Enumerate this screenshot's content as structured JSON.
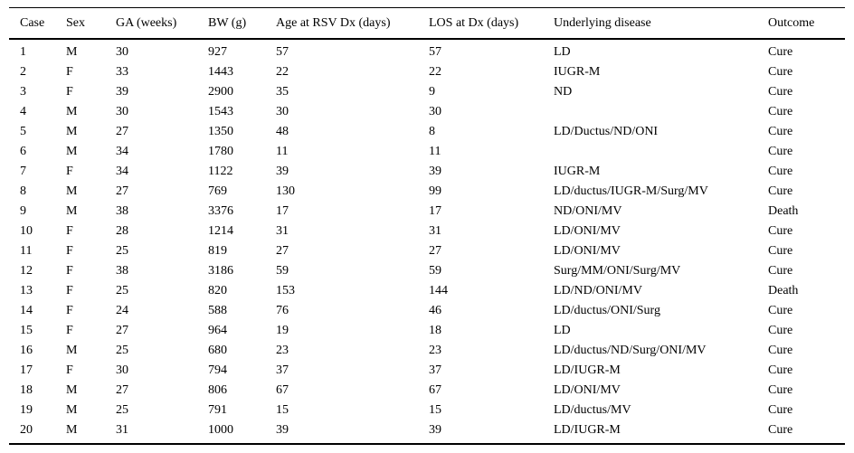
{
  "table": {
    "columns": [
      "Case",
      "Sex",
      "GA (weeks)",
      "BW (g)",
      "Age at RSV Dx (days)",
      "LOS at Dx (days)",
      "Underlying disease",
      "Outcome"
    ],
    "rows": [
      [
        "1",
        "M",
        "30",
        "927",
        "57",
        "57",
        "LD",
        "Cure"
      ],
      [
        "2",
        "F",
        "33",
        "1443",
        "22",
        "22",
        "IUGR-M",
        "Cure"
      ],
      [
        "3",
        "F",
        "39",
        "2900",
        "35",
        "9",
        "ND",
        "Cure"
      ],
      [
        "4",
        "M",
        "30",
        "1543",
        "30",
        "30",
        "",
        "Cure"
      ],
      [
        "5",
        "M",
        "27",
        "1350",
        "48",
        "8",
        "LD/Ductus/ND/ONI",
        "Cure"
      ],
      [
        "6",
        "M",
        "34",
        "1780",
        "11",
        "11",
        "",
        "Cure"
      ],
      [
        "7",
        "F",
        "34",
        "1122",
        "39",
        "39",
        "IUGR-M",
        "Cure"
      ],
      [
        "8",
        "M",
        "27",
        "769",
        "130",
        "99",
        "LD/ductus/IUGR-M/Surg/MV",
        "Cure"
      ],
      [
        "9",
        "M",
        "38",
        "3376",
        "17",
        "17",
        "ND/ONI/MV",
        "Death"
      ],
      [
        "10",
        "F",
        "28",
        "1214",
        "31",
        "31",
        "LD/ONI/MV",
        "Cure"
      ],
      [
        "11",
        "F",
        "25",
        "819",
        "27",
        "27",
        "LD/ONI/MV",
        "Cure"
      ],
      [
        "12",
        "F",
        "38",
        "3186",
        "59",
        "59",
        "Surg/MM/ONI/Surg/MV",
        "Cure"
      ],
      [
        "13",
        "F",
        "25",
        "820",
        "153",
        "144",
        "LD/ND/ONI/MV",
        "Death"
      ],
      [
        "14",
        "F",
        "24",
        "588",
        "76",
        "46",
        "LD/ductus/ONI/Surg",
        "Cure"
      ],
      [
        "15",
        "F",
        "27",
        "964",
        "19",
        "18",
        "LD",
        "Cure"
      ],
      [
        "16",
        "M",
        "25",
        "680",
        "23",
        "23",
        "LD/ductus/ND/Surg/ONI/MV",
        "Cure"
      ],
      [
        "17",
        "F",
        "30",
        "794",
        "37",
        "37",
        "LD/IUGR-M",
        "Cure"
      ],
      [
        "18",
        "M",
        "27",
        "806",
        "67",
        "67",
        "LD/ONI/MV",
        "Cure"
      ],
      [
        "19",
        "M",
        "25",
        "791",
        "15",
        "15",
        "LD/ductus/MV",
        "Cure"
      ],
      [
        "20",
        "M",
        "31",
        "1000",
        "39",
        "39",
        "LD/IUGR-M",
        "Cure"
      ]
    ]
  },
  "chart_data": {
    "type": "table",
    "columns": [
      "Case",
      "Sex",
      "GA (weeks)",
      "BW (g)",
      "Age at RSV Dx (days)",
      "LOS at Dx (days)",
      "Underlying disease",
      "Outcome"
    ],
    "rows": [
      [
        "1",
        "M",
        "30",
        "927",
        "57",
        "57",
        "LD",
        "Cure"
      ],
      [
        "2",
        "F",
        "33",
        "1443",
        "22",
        "22",
        "IUGR-M",
        "Cure"
      ],
      [
        "3",
        "F",
        "39",
        "2900",
        "35",
        "9",
        "ND",
        "Cure"
      ],
      [
        "4",
        "M",
        "30",
        "1543",
        "30",
        "30",
        "",
        "Cure"
      ],
      [
        "5",
        "M",
        "27",
        "1350",
        "48",
        "8",
        "LD/Ductus/ND/ONI",
        "Cure"
      ],
      [
        "6",
        "M",
        "34",
        "1780",
        "11",
        "11",
        "",
        "Cure"
      ],
      [
        "7",
        "F",
        "34",
        "1122",
        "39",
        "39",
        "IUGR-M",
        "Cure"
      ],
      [
        "8",
        "M",
        "27",
        "769",
        "130",
        "99",
        "LD/ductus/IUGR-M/Surg/MV",
        "Cure"
      ],
      [
        "9",
        "M",
        "38",
        "3376",
        "17",
        "17",
        "ND/ONI/MV",
        "Death"
      ],
      [
        "10",
        "F",
        "28",
        "1214",
        "31",
        "31",
        "LD/ONI/MV",
        "Cure"
      ],
      [
        "11",
        "F",
        "25",
        "819",
        "27",
        "27",
        "LD/ONI/MV",
        "Cure"
      ],
      [
        "12",
        "F",
        "38",
        "3186",
        "59",
        "59",
        "Surg/MM/ONI/Surg/MV",
        "Cure"
      ],
      [
        "13",
        "F",
        "25",
        "820",
        "153",
        "144",
        "LD/ND/ONI/MV",
        "Death"
      ],
      [
        "14",
        "F",
        "24",
        "588",
        "76",
        "46",
        "LD/ductus/ONI/Surg",
        "Cure"
      ],
      [
        "15",
        "F",
        "27",
        "964",
        "19",
        "18",
        "LD",
        "Cure"
      ],
      [
        "16",
        "M",
        "25",
        "680",
        "23",
        "23",
        "LD/ductus/ND/Surg/ONI/MV",
        "Cure"
      ],
      [
        "17",
        "F",
        "30",
        "794",
        "37",
        "37",
        "LD/IUGR-M",
        "Cure"
      ],
      [
        "18",
        "M",
        "27",
        "806",
        "67",
        "67",
        "LD/ONI/MV",
        "Cure"
      ],
      [
        "19",
        "M",
        "25",
        "791",
        "15",
        "15",
        "LD/ductus/MV",
        "Cure"
      ],
      [
        "20",
        "M",
        "31",
        "1000",
        "39",
        "39",
        "LD/IUGR-M",
        "Cure"
      ]
    ]
  }
}
